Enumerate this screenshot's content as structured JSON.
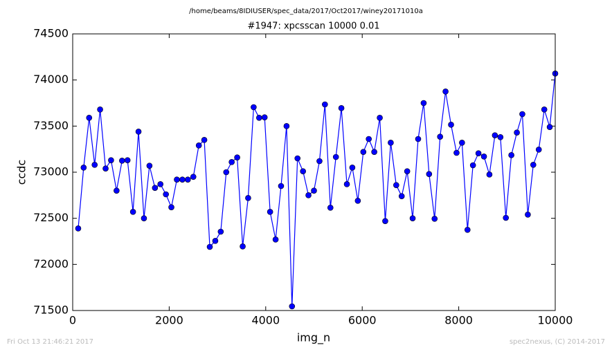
{
  "chart_data": {
    "type": "line",
    "suptitle": "/home/beams/8IDIUSER/spec_data/2017/Oct2017/winey20171010a",
    "title": "#1947: xpcsscan 10000 0.01",
    "x_label": "img_n",
    "y_label": "ccdc",
    "xlim": [
      0,
      10000
    ],
    "xticks": [
      0,
      2000,
      4000,
      6000,
      8000,
      10000
    ],
    "ylim": [
      71500,
      74500
    ],
    "yticks": [
      71500,
      72000,
      72500,
      73000,
      73500,
      74000,
      74500
    ],
    "grid": false,
    "x": [
      114,
      227,
      341,
      455,
      568,
      682,
      795,
      909,
      1023,
      1136,
      1250,
      1364,
      1477,
      1591,
      1705,
      1818,
      1932,
      2045,
      2159,
      2273,
      2386,
      2500,
      2614,
      2727,
      2841,
      2955,
      3068,
      3182,
      3295,
      3409,
      3523,
      3636,
      3750,
      3864,
      3977,
      4091,
      4205,
      4318,
      4432,
      4545,
      4659,
      4773,
      4886,
      5000,
      5114,
      5227,
      5341,
      5455,
      5568,
      5682,
      5795,
      5909,
      6023,
      6136,
      6250,
      6364,
      6477,
      6591,
      6705,
      6818,
      6932,
      7045,
      7159,
      7273,
      7386,
      7500,
      7614,
      7727,
      7841,
      7955,
      8068,
      8182,
      8295,
      8409,
      8523,
      8636,
      8750,
      8864,
      8977,
      9091,
      9205,
      9318,
      9432,
      9545,
      9659,
      9773,
      9886,
      10000
    ],
    "series": [
      {
        "color": "#0000ff",
        "marker": "circle",
        "values": [
          72390,
          73050,
          73590,
          73080,
          73680,
          73040,
          73130,
          72800,
          73125,
          73130,
          72570,
          73440,
          72500,
          73070,
          72830,
          72870,
          72760,
          72620,
          72920,
          72920,
          72920,
          72950,
          73290,
          73350,
          72190,
          72255,
          72355,
          73000,
          73110,
          73160,
          72195,
          72720,
          73705,
          73590,
          73595,
          72570,
          72270,
          72850,
          73500,
          71545,
          73150,
          73010,
          72750,
          72800,
          73120,
          73735,
          72615,
          73165,
          73695,
          72870,
          73050,
          72690,
          73220,
          73360,
          73220,
          73590,
          72470,
          73320,
          72860,
          72740,
          73010,
          72500,
          73360,
          73750,
          72980,
          72495,
          73385,
          73875,
          73515,
          73210,
          73320,
          72375,
          73075,
          73205,
          73170,
          72975,
          73400,
          73380,
          72505,
          73185,
          73430,
          73630,
          72540,
          73080,
          73245,
          73680,
          73490,
          74070
        ]
      }
    ]
  },
  "footer": {
    "left": "Fri Oct 13 21:46:21 2017",
    "right": "spec2nexus, (C) 2014-2017"
  }
}
